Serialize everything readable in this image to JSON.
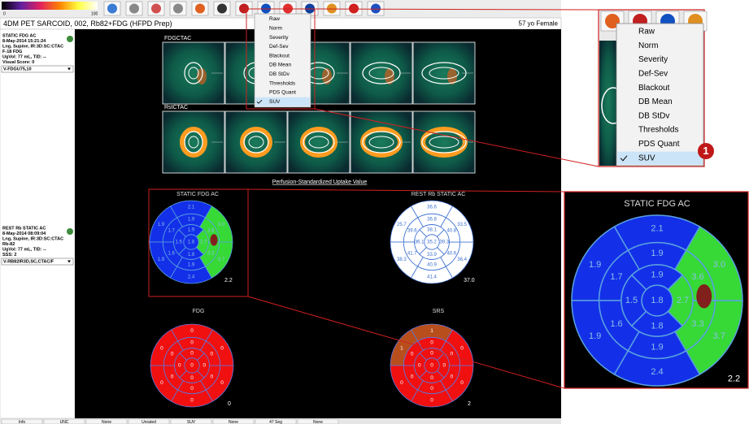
{
  "toolbar": {
    "colorbar_labels": [
      "0",
      "100"
    ]
  },
  "title_bar": {
    "study": "4DM PET SARCOID, 002, Rb82+FDG (HFPD Prep)",
    "patient": "57 yo Female"
  },
  "left_panel": {
    "datasets": [
      {
        "lines": [
          "STATIC FDG AC",
          "8-May-2014 15:21:24",
          "Lng, Supine, IR:3D:SC:CTAC",
          "F-18 FDG",
          "UgVol: 77 mL, TID: --",
          "Visual Score: 0"
        ],
        "dropdown": "V-FDGU75,10"
      },
      {
        "lines": [
          "REST Rb STATIC AC",
          "8-May-2014 08:09:04",
          "Lng, Supine, IR:3D:SC:CTAC",
          "Rb-82",
          "UgVol: 77 mL, TID: --",
          "SSS: 2"
        ],
        "dropdown": "V-RB82IR3D,SC,CTAC/F"
      }
    ]
  },
  "menu": {
    "items": [
      "Raw",
      "Norm",
      "Severity",
      "Def-Sev",
      "Blackout",
      "DB Mean",
      "DB StDv",
      "Thresholds",
      "PDS Quant",
      "SUV"
    ],
    "checked": 9
  },
  "images": {
    "rows": [
      {
        "label": "FDGCTAC"
      },
      {
        "label": "RstCTAC"
      }
    ],
    "caption": "Perfusion-Standardized Uptake Value"
  },
  "polar_maps": [
    {
      "title": "STATIC FDG AC",
      "corner": "2.2",
      "line_color": "#5aa0e0",
      "text_color": "#8fbfe8",
      "segments": [
        "2.1",
        "1.9",
        "1.9",
        "2.4",
        "3.7",
        "3.0",
        "1.9",
        "1.7",
        "1.6",
        "1.9",
        "3.3",
        "3.6",
        "1.9",
        "1.5",
        "1.8",
        "2.7",
        "1.8"
      ],
      "colors": [
        "#1330e8",
        "#1330e8",
        "#1330e8",
        "#1330e8",
        "#36d936",
        "#36d936",
        "#1330e8",
        "#1330e8",
        "#1330e8",
        "#1330e8",
        "#36d936",
        "#36d936",
        "#1330e8",
        "#1330e8",
        "#1330e8",
        "#36d936",
        "#1330e8"
      ]
    },
    {
      "title": "REST Rb STATIC AC",
      "corner": "37.0",
      "line_color": "#3a6fd0",
      "text_color": "#3a6fd0",
      "segments": [
        "36.6",
        "25.7",
        "38.3",
        "41.4",
        "36.4",
        "33.5",
        "36.8",
        "39.6",
        "41.7",
        "40.9",
        "40.6",
        "40.8",
        "38.1",
        "36.1",
        "33.9",
        "39.3",
        "35.2"
      ],
      "colors": [
        "#ffffff",
        "#ffffff",
        "#ffffff",
        "#ffffff",
        "#ffffff",
        "#ffffff",
        "#ffffff",
        "#ffffff",
        "#ffffff",
        "#ffffff",
        "#ffffff",
        "#ffffff",
        "#ffffff",
        "#ffffff",
        "#ffffff",
        "#ffffff",
        "#ffffff"
      ]
    },
    {
      "title": "FDG",
      "corner": "0",
      "line_color": "#5a78e0",
      "text_color": "#ffffff",
      "segments": [
        "0",
        "0",
        "0",
        "0",
        "0",
        "0",
        "0",
        "0",
        "0",
        "0",
        "0",
        "0",
        "0",
        "0",
        "0",
        "0",
        "0"
      ],
      "colors": [
        "#f01010",
        "#f01010",
        "#f01010",
        "#f01010",
        "#f01010",
        "#f01010",
        "#f01010",
        "#f01010",
        "#f01010",
        "#f01010",
        "#f01010",
        "#f01010",
        "#f01010",
        "#f01010",
        "#f01010",
        "#f01010",
        "#f01010"
      ]
    },
    {
      "title": "SRS",
      "corner": "2",
      "line_color": "#5a78e0",
      "text_color": "#ffffff",
      "segments": [
        "1",
        "1",
        "0",
        "0",
        "0",
        "0",
        "0",
        "0",
        "0",
        "0",
        "0",
        "0",
        "0",
        "0",
        "0",
        "0",
        "0"
      ],
      "colors": [
        "#b84e1c",
        "#b84e1c",
        "#f01010",
        "#f01010",
        "#f01010",
        "#f01010",
        "#f01010",
        "#f01010",
        "#f01010",
        "#f01010",
        "#f01010",
        "#f01010",
        "#f01010",
        "#f01010",
        "#f01010",
        "#f01010",
        "#f01010"
      ]
    }
  ],
  "status_bar": {
    "items": [
      "Info",
      "UNC",
      "None",
      "Unrated",
      "SUV",
      "None",
      "47 Seg",
      "None"
    ]
  },
  "callout": {
    "marker": "1"
  }
}
